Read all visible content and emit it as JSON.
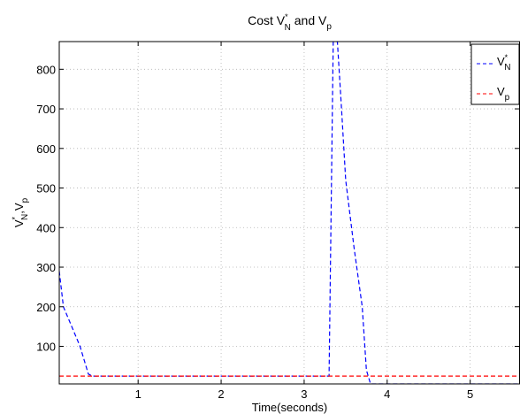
{
  "chart_data": {
    "type": "line",
    "title": {
      "main": "Cost V",
      "sup": "*",
      "sub": "N",
      "mid": " and V",
      "sub2": "p"
    },
    "xlabel": "Time(seconds)",
    "ylabel": {
      "p1": "V",
      "sup1": "*",
      "sub1": "N",
      "p2": ",V",
      "sub2": "p"
    },
    "xlim": [
      0.05,
      5.6
    ],
    "ylim": [
      5,
      870
    ],
    "x_ticks": [
      1,
      2,
      3,
      4,
      5
    ],
    "x_tick_labels": [
      "1",
      "2",
      "3",
      "4",
      "5"
    ],
    "y_ticks": [
      100,
      200,
      300,
      400,
      500,
      600,
      700,
      800
    ],
    "y_tick_labels": [
      "100",
      "200",
      "300",
      "400",
      "500",
      "600",
      "700",
      "800"
    ],
    "grid": true,
    "legend_position": "top-right",
    "series": [
      {
        "name": {
          "base": "V",
          "sup": "*",
          "sub": "N"
        },
        "color": "#0000ff",
        "style": "dashed",
        "x": [
          0.05,
          0.1,
          0.2,
          0.3,
          0.4,
          0.45,
          0.5,
          1.0,
          2.0,
          3.0,
          3.3,
          3.35,
          3.4,
          3.45,
          3.5,
          3.6,
          3.7,
          3.75,
          3.8,
          3.9,
          4.0,
          4.5,
          5.0,
          5.6
        ],
        "y": [
          290,
          200,
          150,
          100,
          30,
          25,
          25,
          25,
          25,
          25,
          25,
          870,
          870,
          700,
          520,
          350,
          200,
          40,
          5,
          5,
          5,
          5,
          5,
          5
        ]
      },
      {
        "name": {
          "base": "V",
          "sub": "p"
        },
        "color": "#ff0000",
        "style": "dashed",
        "x": [
          0.05,
          5.6
        ],
        "y": [
          25,
          25
        ]
      }
    ]
  }
}
